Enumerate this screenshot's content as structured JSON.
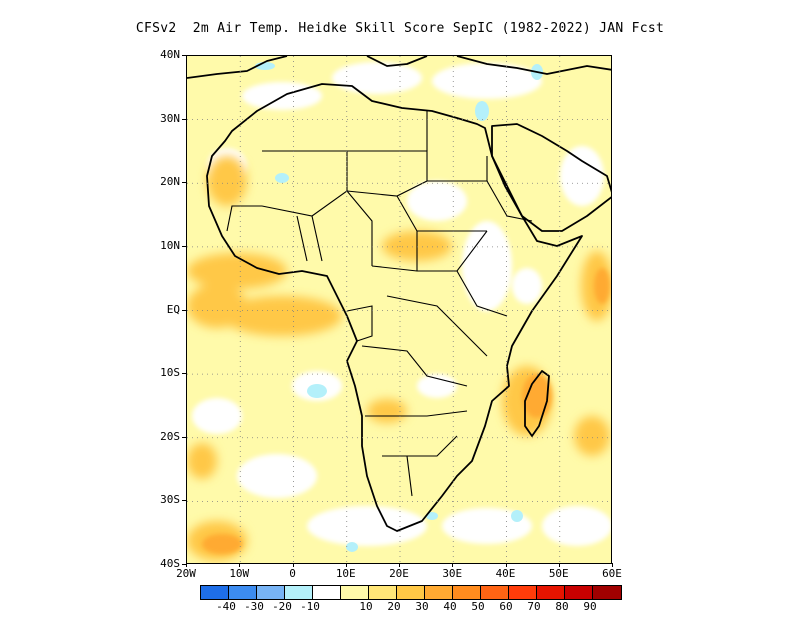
{
  "title": "CFSv2  2m Air Temp. Heidke Skill Score SepIC (1982-2022) JAN Fcst",
  "lat_labels": [
    "40N",
    "30N",
    "20N",
    "10N",
    "EQ",
    "10S",
    "20S",
    "30S",
    "40S"
  ],
  "lon_labels": [
    "20W",
    "10W",
    "0",
    "10E",
    "20E",
    "30E",
    "40E",
    "50E",
    "60E"
  ],
  "colorbar": {
    "colors": [
      "#1e6ee8",
      "#3c8cf0",
      "#78b4f5",
      "#b4f0fa",
      "#ffffff",
      "#fffaaa",
      "#ffe678",
      "#ffc846",
      "#ffaa32",
      "#ff8c1e",
      "#ff6414",
      "#ff3c0a",
      "#e61400",
      "#c80000",
      "#a00000"
    ],
    "labels": [
      "-40",
      "-30",
      "-20",
      "-10",
      "10",
      "20",
      "30",
      "40",
      "50",
      "60",
      "70",
      "80",
      "90"
    ]
  },
  "map": {
    "lon_range": [
      -20,
      60
    ],
    "lat_range": [
      -40,
      40
    ],
    "grid": "dotted",
    "field": "2m Air Temp. Heidke Skill Score"
  }
}
